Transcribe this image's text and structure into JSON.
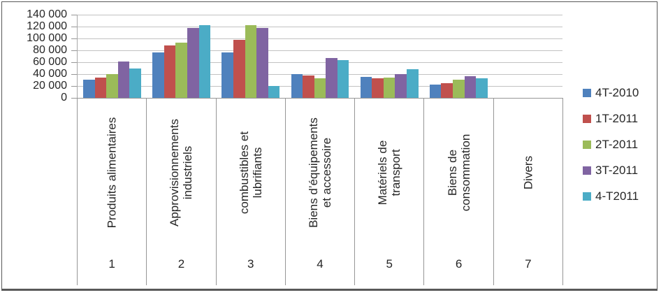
{
  "chart_data": {
    "type": "bar",
    "title": "",
    "xlabel": "",
    "ylabel": "",
    "categories": [
      "Produits alimentaires",
      "Approvisionnements industriels",
      "combustibles et lubrifiants",
      "Biens d’équipements et accessoire",
      "Matériels de transport",
      "Biens de consommation",
      "Divers"
    ],
    "category_label_lines": [
      "Produits alimentaires",
      "Approvisionnements\nindustriels",
      "combustibles et\nlubrifiants",
      "Biens d’équipements\net accessoire",
      "Matériels de\ntransport",
      "Biens de\nconsommation",
      "Divers"
    ],
    "category_numbers": [
      "1",
      "2",
      "3",
      "4",
      "5",
      "6",
      "7"
    ],
    "series": [
      {
        "name": "4T-2010",
        "color": "#4F81BD",
        "values": [
          31000,
          77000,
          77000,
          40000,
          35000,
          22000,
          0
        ]
      },
      {
        "name": "1T-2011",
        "color": "#C0504D",
        "values": [
          34000,
          88000,
          98000,
          38000,
          33000,
          25000,
          0
        ]
      },
      {
        "name": "2T-2011",
        "color": "#9BBB59",
        "values": [
          40000,
          93000,
          122000,
          33000,
          34000,
          30000,
          0
        ]
      },
      {
        "name": "3T-2011",
        "color": "#8064A2",
        "values": [
          61000,
          118000,
          118000,
          67000,
          40000,
          37000,
          0
        ]
      },
      {
        "name": "4-T2011",
        "color": "#4BACC6",
        "values": [
          49000,
          122000,
          20000,
          64000,
          48000,
          33000,
          0
        ]
      }
    ],
    "ylim": [
      0,
      140000
    ],
    "ytick_step": 20000,
    "ytick_labels": [
      "140 000",
      "120 000",
      "100 000",
      "80 000",
      "60 000",
      "40 000",
      "20 000",
      "0"
    ],
    "grid": true,
    "legend_position": "right",
    "colors": {
      "gridline": "#C2C2C2",
      "axis": "#969696",
      "text": "#262626",
      "background": "#FFFFFF"
    }
  }
}
